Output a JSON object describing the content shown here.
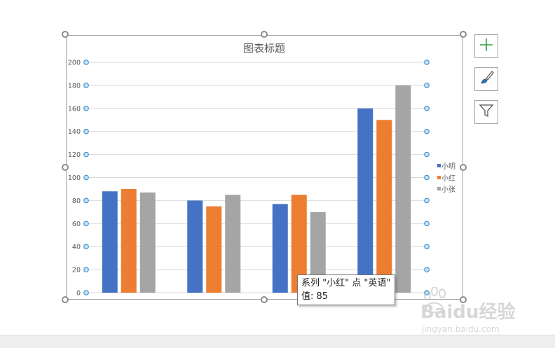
{
  "chart_data": {
    "type": "bar",
    "title": "图表标题",
    "categories": [
      "",
      "",
      "英语",
      ""
    ],
    "series": [
      {
        "name": "小明",
        "values": [
          88,
          80,
          77,
          160
        ],
        "color": "#4472c4"
      },
      {
        "name": "小红",
        "values": [
          90,
          75,
          85,
          150
        ],
        "color": "#ed7d31"
      },
      {
        "name": "小张",
        "values": [
          87,
          85,
          70,
          180
        ],
        "color": "#a5a5a5"
      }
    ],
    "ylim": [
      0,
      200
    ],
    "yticks": [
      "0",
      "20",
      "40",
      "60",
      "80",
      "100",
      "120",
      "140",
      "160",
      "180",
      "200"
    ],
    "grid": true,
    "legend_position": "right"
  },
  "tooltip": {
    "line1": "系列 \"小红\" 点 \"英语\"",
    "line2": "值: 85"
  },
  "side_buttons": {
    "add_icon": "plus-icon",
    "style_icon": "brush-icon",
    "filter_icon": "funnel-icon"
  },
  "watermark": {
    "brand": "Baidu经验",
    "url": "jingyan.baidu.com"
  }
}
